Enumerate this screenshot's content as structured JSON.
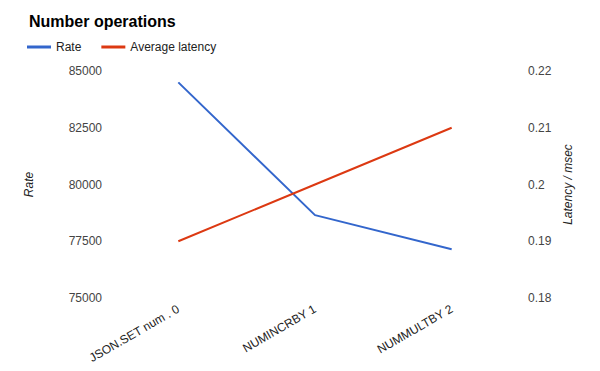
{
  "chart_data": {
    "type": "line",
    "title": "Number operations",
    "categories": [
      "JSON.SET num . 0",
      "NUMINCRBY 1",
      "NUMMULTBY 2"
    ],
    "series": [
      {
        "name": "Rate",
        "color": "#3366cc",
        "values": [
          84500,
          78650,
          77150
        ]
      },
      {
        "name": "Average latency",
        "color": "#dc3912",
        "values": [
          0.19,
          0.2,
          0.21
        ],
        "axis": "y2"
      }
    ],
    "y_label": "Rate",
    "y2_label": "Latency / msec",
    "ylim": [
      75000,
      85000
    ],
    "yticks": [
      75000,
      77500,
      80000,
      82500,
      85000
    ],
    "y2lim": [
      0.18,
      0.22
    ],
    "y2ticks": [
      0.18,
      0.19,
      0.2,
      0.21,
      0.22
    ],
    "grid": false,
    "legend": "top"
  }
}
